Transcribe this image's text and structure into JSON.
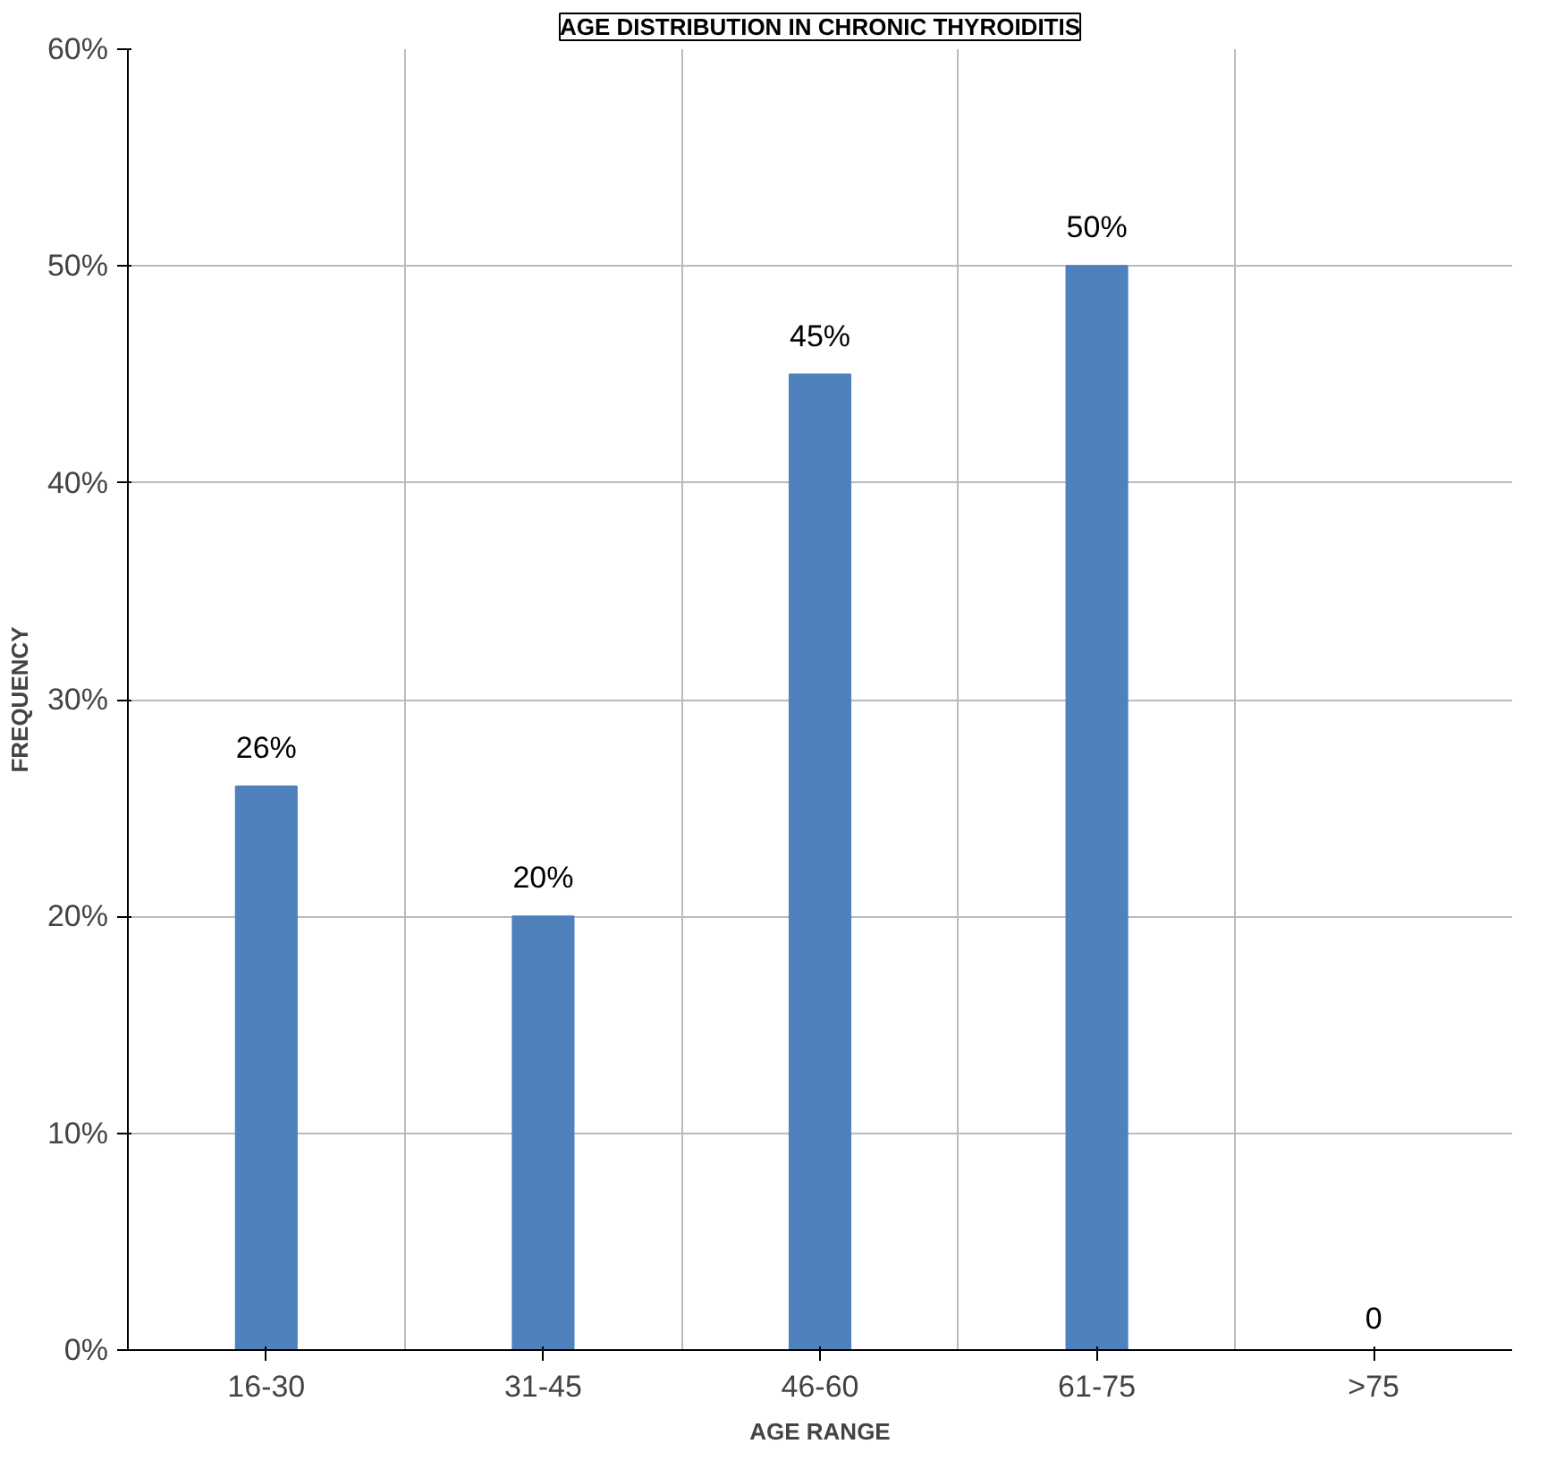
{
  "chart_data": {
    "type": "bar",
    "title": "AGE DISTRIBUTION IN CHRONIC THYROIDITIS",
    "xlabel": "AGE RANGE",
    "ylabel": "FREQUENCY",
    "categories": [
      "16-30",
      "31-45",
      "46-60",
      "61-75",
      ">75"
    ],
    "values": [
      26,
      20,
      45,
      50,
      0
    ],
    "color": "#4f81bd",
    "value_labels": [
      "26%",
      "20%",
      "45%",
      "50%",
      "0"
    ],
    "ylim": [
      0,
      60
    ],
    "yticks": [
      {
        "value": 0,
        "label": "0%"
      },
      {
        "value": 10,
        "label": "10%"
      },
      {
        "value": 20,
        "label": "20%"
      },
      {
        "value": 30,
        "label": "30%"
      },
      {
        "value": 40,
        "label": "40%"
      },
      {
        "value": 50,
        "label": "50%"
      },
      {
        "value": 60,
        "label": "60%"
      }
    ],
    "grid": true
  }
}
